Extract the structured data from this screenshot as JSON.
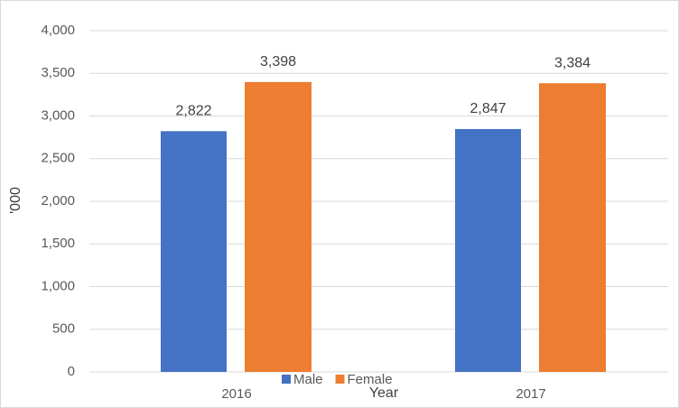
{
  "chart_data": {
    "type": "bar",
    "y_label": "'000",
    "x_label": "Year",
    "categories": [
      "2016",
      "2017"
    ],
    "series": [
      {
        "name": "Male",
        "color": "#4472c4",
        "values": [
          2822,
          2847
        ],
        "value_labels": [
          "2,822",
          "2,847"
        ]
      },
      {
        "name": "Female",
        "color": "#ed7d31",
        "values": [
          3398,
          3384
        ],
        "value_labels": [
          "3,398",
          "3,384"
        ]
      }
    ],
    "ylim": [
      0,
      4000
    ],
    "yticks": [
      0,
      500,
      {
        "value": 1000,
        "label": "1,000"
      },
      {
        "value": 1500,
        "label": "1,500"
      },
      {
        "value": 2000,
        "label": "2,000"
      },
      {
        "value": 2500,
        "label": "2,500"
      },
      {
        "value": 3000,
        "label": "3,000"
      },
      {
        "value": 3500,
        "label": "3,500"
      },
      {
        "value": 4000,
        "label": "4,000"
      }
    ],
    "grid": true,
    "legend": "bottom"
  }
}
